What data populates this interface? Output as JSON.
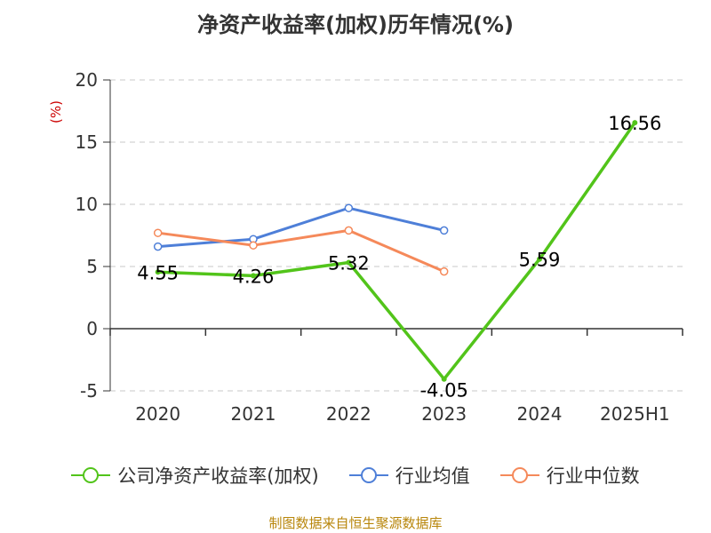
{
  "chart_data": {
    "type": "line",
    "title": "净资产收益率(加权)历年情况(%)",
    "ylabel": "(%)",
    "categories": [
      "2020",
      "2021",
      "2022",
      "2023",
      "2024",
      "2025H1"
    ],
    "ylim": [
      -5,
      20
    ],
    "yticks": [
      -5,
      0,
      5,
      10,
      15,
      20
    ],
    "grid": true,
    "legend_position": "bottom",
    "series": [
      {
        "name": "公司净资产收益率(加权)",
        "color": "#52c41a",
        "values": [
          4.55,
          4.26,
          5.32,
          -4.05,
          5.59,
          16.56
        ],
        "labels": [
          "4.55",
          "4.26",
          "5.32",
          "-4.05",
          "5.59",
          "16.56"
        ]
      },
      {
        "name": "行业均值",
        "color": "#4e7fd8",
        "values": [
          6.6,
          7.2,
          9.7,
          7.9,
          null,
          null
        ]
      },
      {
        "name": "行业中位数",
        "color": "#f5895a",
        "values": [
          7.7,
          6.7,
          7.9,
          4.6,
          null,
          null
        ]
      }
    ]
  },
  "source": "制图数据来自恒生聚源数据库"
}
